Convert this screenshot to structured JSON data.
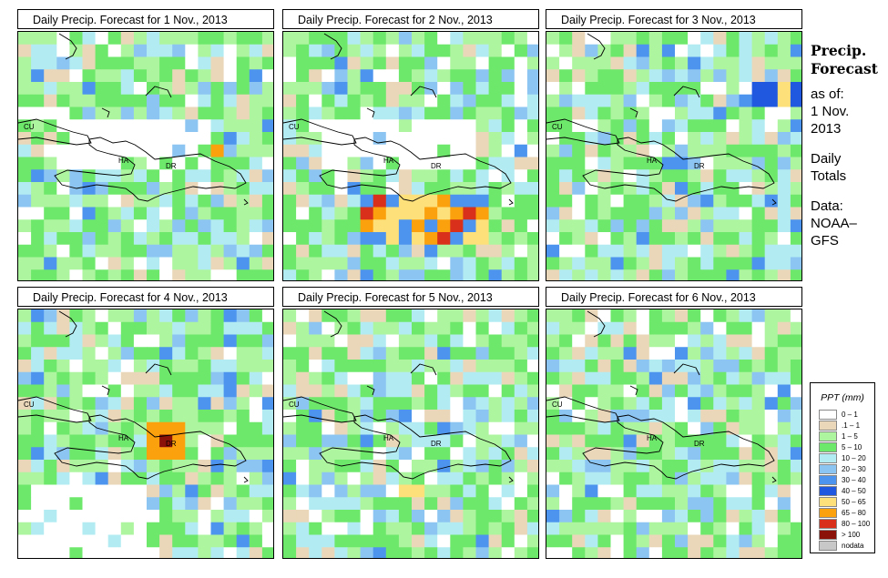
{
  "panels": [
    {
      "title": "Daily Precip. Forecast for  1 Nov., 2013",
      "seed": 11,
      "hot": []
    },
    {
      "title": "Daily Precip. Forecast for  2 Nov., 2013",
      "seed": 23,
      "hot": [
        "band"
      ]
    },
    {
      "title": "Daily Precip. Forecast for  3 Nov., 2013",
      "seed": 37,
      "hot": [
        "ne"
      ]
    },
    {
      "title": "Daily Precip. Forecast for  4 Nov., 2013",
      "seed": 41,
      "hot": [
        "dr"
      ]
    },
    {
      "title": "Daily Precip. Forecast for  5 Nov., 2013",
      "seed": 53,
      "hot": [
        "south"
      ]
    },
    {
      "title": "Daily Precip. Forecast for  6 Nov., 2013",
      "seed": 67,
      "hot": []
    }
  ],
  "map_labels": {
    "cu": "CU",
    "ha": "HA",
    "dr": "DR"
  },
  "sidebar": {
    "title_line1": "Precip.",
    "title_line2": "Forecast",
    "asof": "as of:",
    "date_line1": "1 Nov.",
    "date_line2": "2013",
    "daily_line1": "Daily",
    "daily_line2": "Totals",
    "data_line1": "Data:",
    "data_line2": "NOAA–",
    "data_line3": "GFS"
  },
  "legend": {
    "title": "PPT (mm)",
    "items": [
      {
        "label": "0 – 1",
        "color": "#ffffff"
      },
      {
        "label": ".1 – 1",
        "color": "#ead7b9"
      },
      {
        "label": "1 – 5",
        "color": "#aef5a0"
      },
      {
        "label": "5 – 10",
        "color": "#6ee86b"
      },
      {
        "label": "10 – 20",
        "color": "#b2ecf2"
      },
      {
        "label": "20 – 30",
        "color": "#8cc5f2"
      },
      {
        "label": "30 – 40",
        "color": "#4c94ee"
      },
      {
        "label": "40 – 50",
        "color": "#2158e0"
      },
      {
        "label": "50 – 65",
        "color": "#fde07a"
      },
      {
        "label": "65 – 80",
        "color": "#fba10d"
      },
      {
        "label": "80 – 100",
        "color": "#d8301a"
      },
      {
        "label": "> 100",
        "color": "#8a1208"
      },
      {
        "label": "nodata",
        "color": "#c8c8c8"
      }
    ]
  }
}
